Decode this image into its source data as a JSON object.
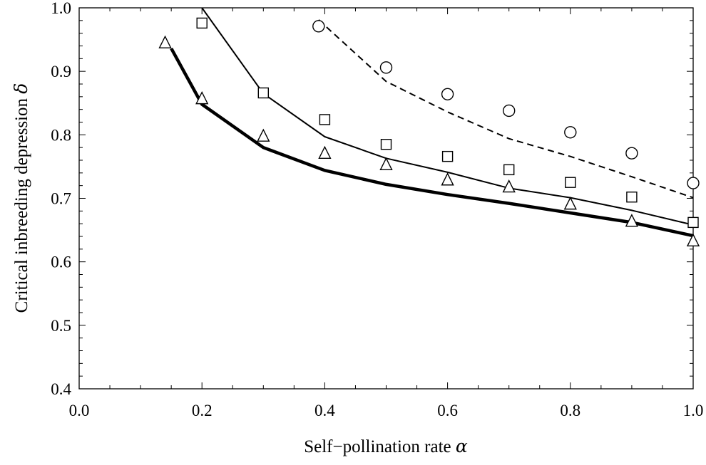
{
  "chart_data": {
    "type": "scatter",
    "title": "",
    "xlabel": "Self−pollination rate",
    "xlabel_symbol": "α",
    "ylabel": "Critical inbreeding depression",
    "ylabel_symbol": "δ",
    "xlim": [
      0.0,
      1.0
    ],
    "ylim": [
      0.4,
      1.0
    ],
    "x_ticks": [
      0.0,
      0.2,
      0.4,
      0.6,
      0.8,
      1.0
    ],
    "x_tick_labels": [
      "0.0",
      "0.2",
      "0.4",
      "0.6",
      "0.8",
      "1.0"
    ],
    "y_ticks": [
      0.4,
      0.5,
      0.6,
      0.7,
      0.8,
      0.9,
      1.0
    ],
    "y_tick_labels": [
      "0.4",
      "0.5",
      "0.6",
      "0.7",
      "0.8",
      "0.9",
      "1.0"
    ],
    "grid": false,
    "legend": "none",
    "lines": [
      {
        "style": "thick-solid",
        "color": "#000000",
        "x": [
          0.15,
          0.2,
          0.3,
          0.4,
          0.5,
          0.6,
          0.7,
          0.8,
          0.9,
          1.0
        ],
        "y": [
          0.936,
          0.848,
          0.78,
          0.744,
          0.722,
          0.706,
          0.692,
          0.677,
          0.662,
          0.641
        ]
      },
      {
        "style": "thin-solid",
        "color": "#000000",
        "x": [
          0.2,
          0.3,
          0.4,
          0.5,
          0.6,
          0.7,
          0.8,
          0.9,
          1.0
        ],
        "y": [
          1.0,
          0.865,
          0.797,
          0.763,
          0.741,
          0.716,
          0.701,
          0.681,
          0.658
        ]
      },
      {
        "style": "dashed",
        "color": "#000000",
        "x": [
          0.39,
          0.5,
          0.6,
          0.7,
          0.8,
          0.9,
          1.0
        ],
        "y": [
          0.981,
          0.884,
          0.836,
          0.794,
          0.766,
          0.734,
          0.701
        ]
      }
    ],
    "markers": [
      {
        "shape": "triangle",
        "x": [
          0.14,
          0.2,
          0.3,
          0.4,
          0.5,
          0.6,
          0.7,
          0.8,
          0.9,
          1.0
        ],
        "y": [
          0.946,
          0.858,
          0.799,
          0.772,
          0.754,
          0.73,
          0.719,
          0.692,
          0.665,
          0.634
        ]
      },
      {
        "shape": "square",
        "x": [
          0.2,
          0.3,
          0.4,
          0.5,
          0.6,
          0.7,
          0.8,
          0.9,
          1.0
        ],
        "y": [
          0.976,
          0.866,
          0.824,
          0.785,
          0.766,
          0.745,
          0.725,
          0.702,
          0.662
        ]
      },
      {
        "shape": "circle",
        "x": [
          0.39,
          0.5,
          0.6,
          0.7,
          0.8,
          0.9,
          1.0
        ],
        "y": [
          0.971,
          0.906,
          0.864,
          0.838,
          0.804,
          0.771,
          0.724
        ]
      }
    ]
  }
}
